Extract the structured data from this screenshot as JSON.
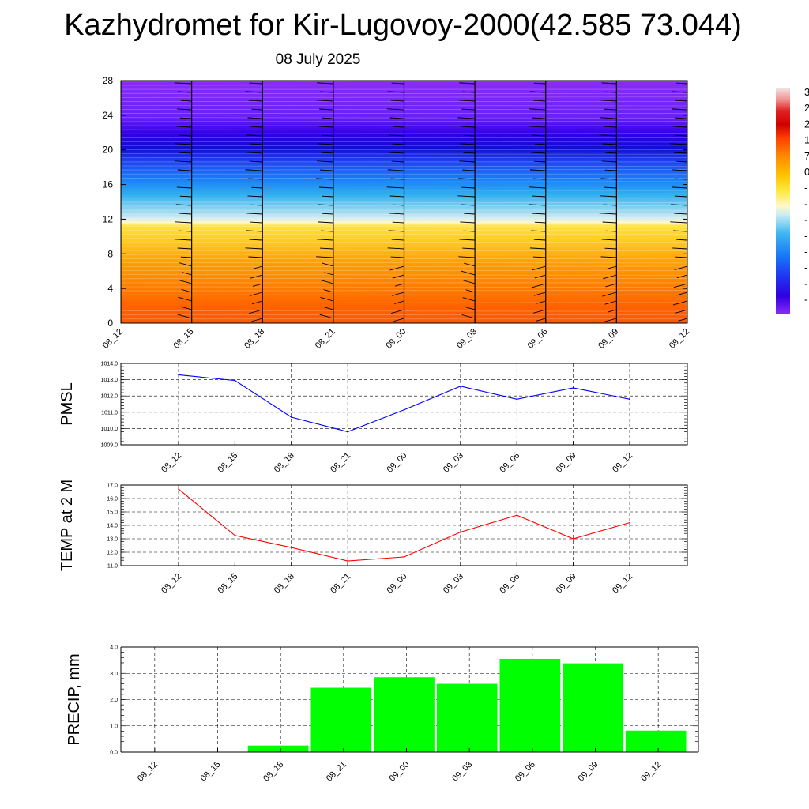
{
  "title": "Kazhydromet for Kir-Lugovoy-2000(42.585 73.044)",
  "subtitle": "08 July 2025",
  "chart_data": [
    {
      "type": "heatmap",
      "title": "",
      "xlabel": "",
      "ylabel": "",
      "x_ticks": [
        "08_12",
        "08_15",
        "08_18",
        "08_21",
        "09_00",
        "09_03",
        "09_06",
        "09_09",
        "09_12"
      ],
      "y_ticks": [
        0,
        4,
        8,
        12,
        16,
        20,
        24,
        28
      ],
      "ylim": [
        0,
        28
      ],
      "colorbar_labels_visible": [
        "3",
        "2",
        "2",
        "1",
        "7",
        "0",
        "-",
        "-",
        "-",
        "-",
        "-",
        "-",
        "-",
        "-"
      ],
      "color_stops": [
        "#e8e8e8",
        "#e00000",
        "#ff6000",
        "#ffa000",
        "#ffe030",
        "#f0f0a0",
        "#b8e4f0",
        "#30b0f0",
        "#2060ff",
        "#2000e0",
        "#8c2cf8"
      ],
      "barbs": "wind barbs drawn at each time column"
    },
    {
      "type": "line",
      "ylabel": "PMSL",
      "categories": [
        "08_12",
        "08_15",
        "08_18",
        "08_21",
        "09_00",
        "09_03",
        "09_06",
        "09_09",
        "09_12"
      ],
      "values": [
        1013.3,
        1012.95,
        1010.7,
        1009.8,
        1011.15,
        1012.6,
        1011.8,
        1012.5,
        1011.8
      ],
      "ylim": [
        1009.0,
        1014.0
      ],
      "y_ticks": [
        "1009.0",
        "1010.0",
        "1011.0",
        "1012.0",
        "1013.0",
        "1014.0"
      ],
      "color": "#0000ff",
      "grid": true
    },
    {
      "type": "line",
      "ylabel": "TEMP at 2 M",
      "categories": [
        "08_12",
        "08_15",
        "08_18",
        "08_21",
        "09_00",
        "09_03",
        "09_06",
        "09_09",
        "09_12"
      ],
      "values": [
        16.7,
        13.25,
        12.35,
        11.35,
        11.65,
        13.5,
        14.75,
        13.0,
        14.2
      ],
      "ylim": [
        11.0,
        17.0
      ],
      "y_ticks": [
        "11.0",
        "12.0",
        "13.0",
        "14.0",
        "15.0",
        "16.0",
        "17.0"
      ],
      "color": "#ff0000",
      "grid": true
    },
    {
      "type": "bar",
      "ylabel": "PRECIP, mm",
      "categories": [
        "08_12",
        "08_15",
        "08_18",
        "08_21",
        "09_00",
        "09_03",
        "09_06",
        "09_09",
        "09_12"
      ],
      "values": [
        0,
        0,
        0.25,
        2.45,
        2.85,
        2.6,
        3.55,
        3.38,
        0.82
      ],
      "ylim": [
        0.0,
        4.0
      ],
      "y_ticks": [
        "0.0",
        "1.0",
        "2.0",
        "3.0",
        "4.0"
      ],
      "color": "#00ff00",
      "grid": true
    }
  ]
}
